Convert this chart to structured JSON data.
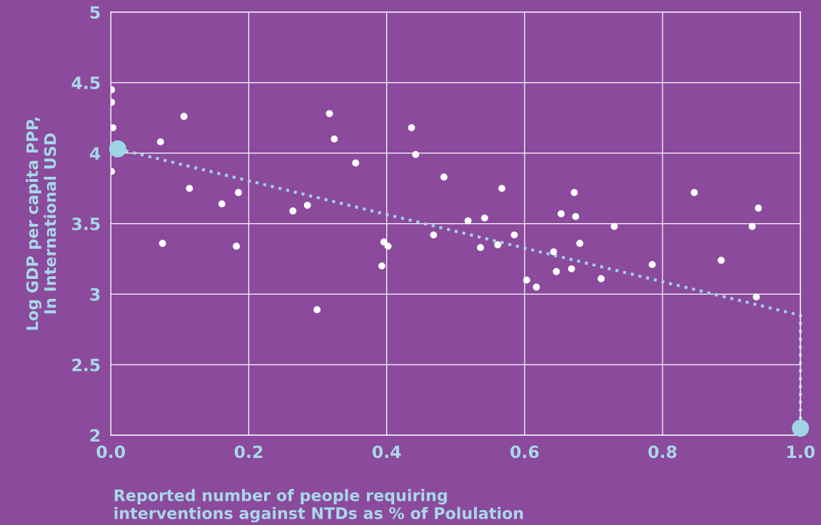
{
  "chart_data": {
    "type": "scatter",
    "xlabel": "Reported number of people requiring\ninterventions against NTDs as % of Polulation",
    "ylabel": "Log GDP per capita PPP,\nIn International USD",
    "xlim": [
      0,
      1
    ],
    "ylim": [
      2,
      5
    ],
    "xticks": [
      {
        "value": 0,
        "label": "0.0"
      },
      0.2,
      0.4,
      0.6,
      0.8,
      {
        "value": 1,
        "label": "1.0"
      }
    ],
    "yticks": [
      2,
      2.5,
      3,
      3.5,
      4,
      4.5,
      5
    ],
    "grid": true,
    "legend": false,
    "series": [
      {
        "type": "scatter",
        "color": "#ffffff",
        "marker": "circle",
        "x": [
          0.001,
          0.001,
          0.003,
          0.001,
          0.072,
          0.106,
          0.114,
          0.075,
          0.161,
          0.185,
          0.182,
          0.264,
          0.285,
          0.299,
          0.317,
          0.324,
          0.355,
          0.396,
          0.402,
          0.393,
          0.436,
          0.442,
          0.483,
          0.468,
          0.518,
          0.542,
          0.536,
          0.567,
          0.561,
          0.585,
          0.603,
          0.617,
          0.653,
          0.642,
          0.646,
          0.672,
          0.674,
          0.68,
          0.668,
          0.73,
          0.711,
          0.785,
          0.846,
          0.885,
          0.93,
          0.939,
          0.936
        ],
        "values": [
          4.45,
          4.36,
          4.18,
          3.87,
          4.08,
          4.26,
          3.75,
          3.36,
          3.64,
          3.72,
          3.34,
          3.59,
          3.63,
          2.89,
          4.28,
          4.1,
          3.93,
          3.37,
          3.34,
          3.2,
          4.18,
          3.99,
          3.83,
          3.42,
          3.52,
          3.54,
          3.33,
          3.75,
          3.35,
          3.42,
          3.1,
          3.05,
          3.57,
          3.3,
          3.16,
          3.72,
          3.55,
          3.36,
          3.18,
          3.48,
          3.11,
          3.21,
          3.72,
          3.24,
          3.48,
          3.61,
          2.98
        ]
      },
      {
        "type": "line",
        "color": "#9fd3e6",
        "line_style": "dotted",
        "x": [
          0.01,
          1.0,
          1.0
        ],
        "values": [
          4.03,
          2.85,
          2.05
        ]
      },
      {
        "type": "bubble",
        "color": "#9fd3e6",
        "x": [
          0.01,
          1.0
        ],
        "values": [
          4.03,
          2.05
        ],
        "sizes": [
          1,
          1
        ]
      }
    ]
  }
}
